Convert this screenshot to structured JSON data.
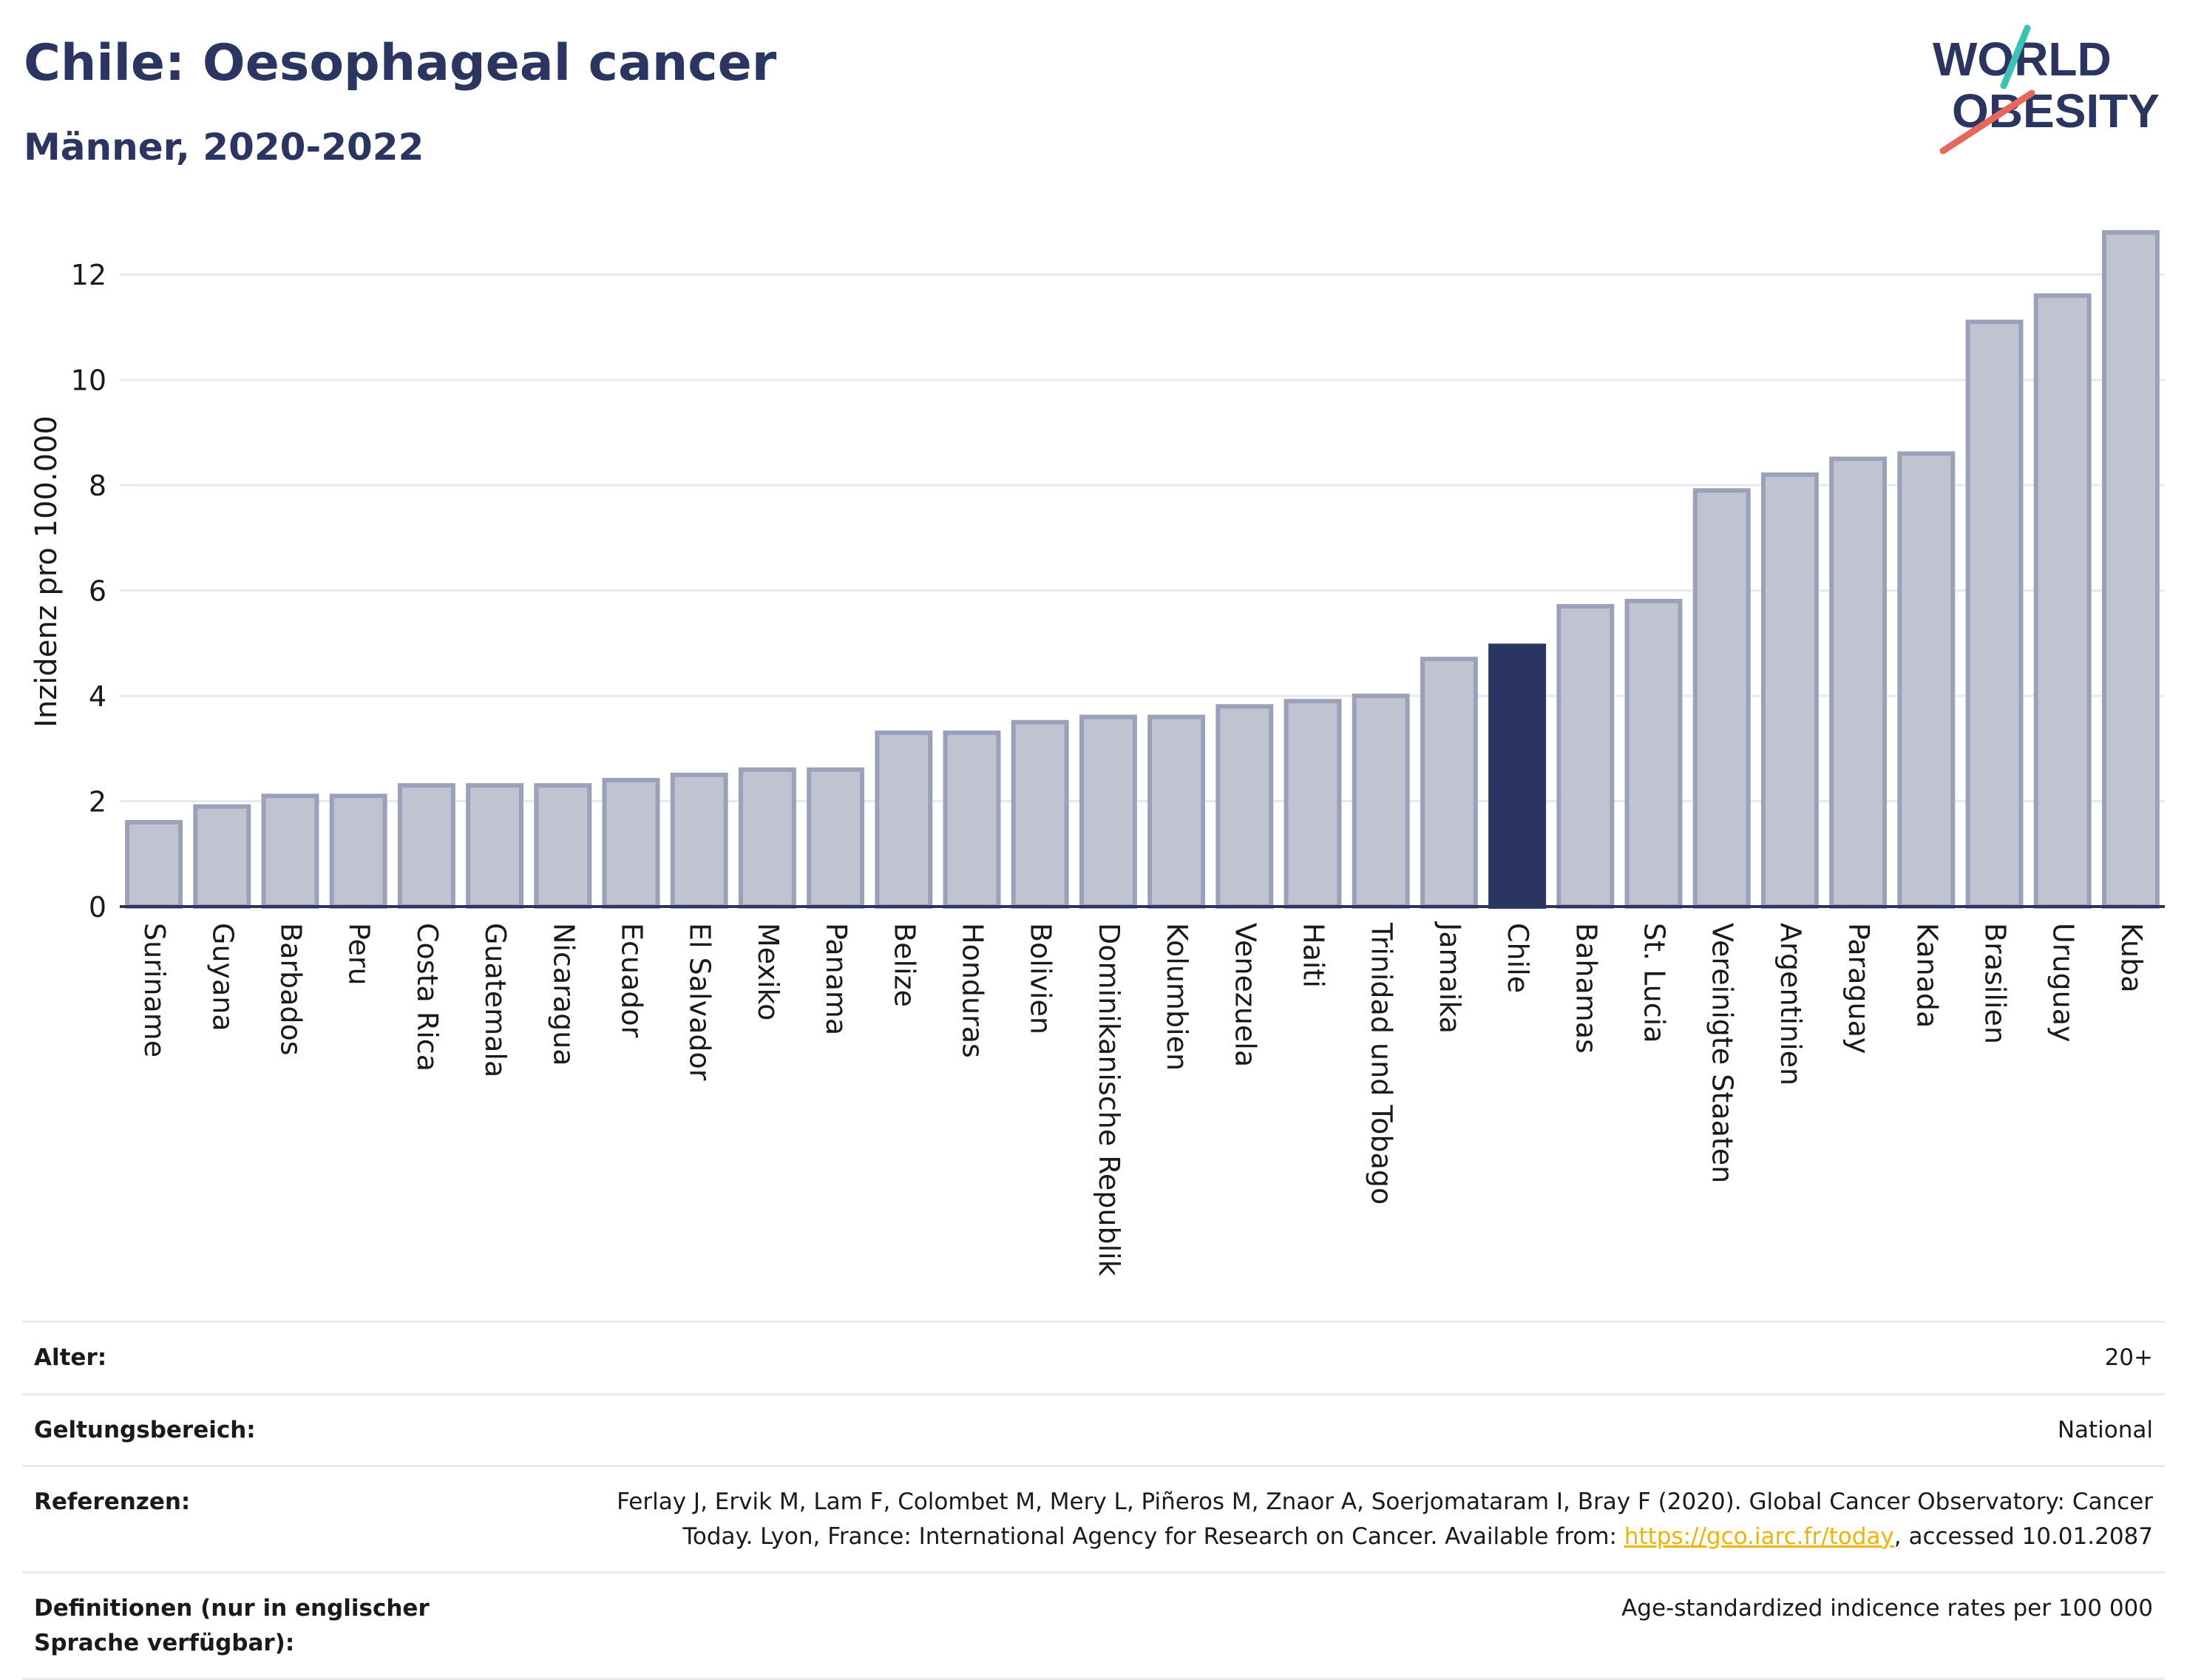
{
  "header": {
    "title": "Chile: Oesophageal cancer",
    "subtitle": "Männer, 2020-2022"
  },
  "logo": {
    "line1": "WORLD",
    "line2": "OBESITY",
    "accent_teal": "#3cc1b6",
    "accent_red": "#e8675a",
    "text_color": "#2b3561"
  },
  "chart_data": {
    "type": "bar",
    "ylabel": "Inzidenz pro 100.000",
    "ylim": [
      0,
      13
    ],
    "yticks": [
      0,
      2,
      4,
      6,
      8,
      10,
      12
    ],
    "grid": true,
    "highlight": "Chile",
    "colors": {
      "bar": "#c0c4d1",
      "bar_edge": "#9aa1b8",
      "highlight": "#2b3561",
      "grid": "#e6e9ef",
      "axis": "#2b3561"
    },
    "categories": [
      "Suriname",
      "Guyana",
      "Barbados",
      "Peru",
      "Costa Rica",
      "Guatemala",
      "Nicaragua",
      "Ecuador",
      "El Salvador",
      "Mexiko",
      "Panama",
      "Belize",
      "Honduras",
      "Bolivien",
      "Dominikanische Republik",
      "Kolumbien",
      "Venezuela",
      "Haiti",
      "Trinidad und Tobago",
      "Jamaika",
      "Chile",
      "Bahamas",
      "St. Lucia",
      "Vereinigte Staaten",
      "Argentinien",
      "Paraguay",
      "Kanada",
      "Brasilien",
      "Uruguay",
      "Kuba"
    ],
    "values": [
      1.6,
      1.9,
      2.1,
      2.1,
      2.3,
      2.3,
      2.3,
      2.4,
      2.5,
      2.6,
      2.6,
      3.3,
      3.3,
      3.5,
      3.6,
      3.6,
      3.8,
      3.9,
      4.0,
      4.7,
      4.95,
      5.7,
      5.8,
      7.9,
      8.2,
      8.5,
      8.6,
      11.1,
      11.6,
      12.8
    ]
  },
  "info": {
    "rows": [
      {
        "label": "Alter:",
        "value": "20+"
      },
      {
        "label": "Geltungsbereich:",
        "value": "National"
      },
      {
        "label": "Referenzen:",
        "value_pre": "Ferlay J, Ervik M, Lam F, Colombet M, Mery L, Piñeros M, Znaor A, Soerjomataram I, Bray F (2020). Global Cancer Observatory: Cancer Today. Lyon, France: International Agency for Research on Cancer. Available from: ",
        "link": "https://gco.iarc.fr/today",
        "value_post": ", accessed 10.01.2087"
      },
      {
        "label": "Definitionen (nur in englischer Sprache verfügbar):",
        "value": "Age-standardized indicence rates per 100 000"
      }
    ]
  }
}
